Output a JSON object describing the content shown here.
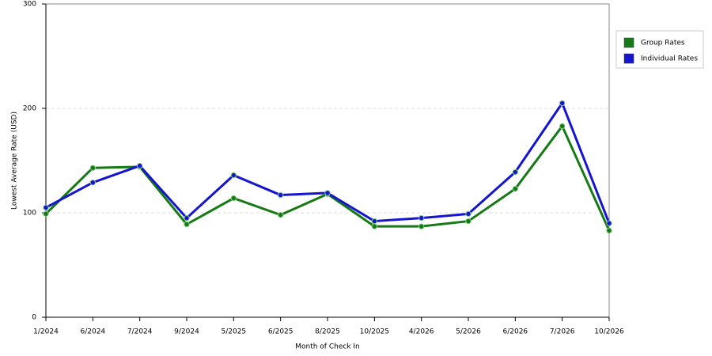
{
  "chart_data": {
    "type": "line",
    "y_label": "Lowest Average Rate (USD)",
    "x_label": "Month of Check In",
    "categories": [
      "1/2024",
      "6/2024",
      "7/2024",
      "9/2024",
      "5/2025",
      "6/2025",
      "8/2025",
      "10/2025",
      "4/2026",
      "5/2026",
      "6/2026",
      "7/2026",
      "10/2026"
    ],
    "series": [
      {
        "name": "Group Rates",
        "color": "#157a15",
        "values": [
          99,
          143,
          144,
          89,
          114,
          98,
          118,
          87,
          87,
          92,
          123,
          183,
          83
        ]
      },
      {
        "name": "Individual Rates",
        "color": "#1515d0",
        "values": [
          105,
          129,
          145,
          95,
          136,
          117,
          119,
          92,
          95,
          99,
          139,
          205,
          90
        ]
      }
    ],
    "ylim": [
      0,
      300
    ],
    "yticks": [
      0,
      100,
      200,
      300
    ],
    "grid": true,
    "legend": "right"
  }
}
